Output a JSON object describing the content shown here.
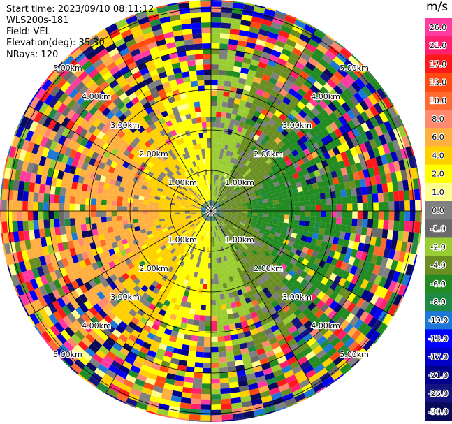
{
  "header": {
    "start_time": "Start time: 2023/09/10 08:11:12",
    "site": "WLS200s-181",
    "field": "Field: VEL",
    "elevation": "Elevation(deg): 35.30",
    "nrays": "NRays: 120"
  },
  "chart_data": {
    "type": "heatmap",
    "projection": "polar-ppi",
    "field": "VEL",
    "units": "m/s",
    "nrays": 120,
    "range_rings": [
      {
        "label": "1.00km",
        "value": 1
      },
      {
        "label": "2.00km",
        "value": 2
      },
      {
        "label": "3.00km",
        "value": 3
      },
      {
        "label": "4.00km",
        "value": 4
      },
      {
        "label": "5.00km",
        "value": 5
      }
    ],
    "colorbar": {
      "title": "m/s",
      "ticks": [
        "26.0",
        "21.0",
        "17.0",
        "13.0",
        "10.0",
        "8.0",
        "6.0",
        "4.0",
        "2.0",
        "1.0",
        "0.0",
        "-1.0",
        "-2.0",
        "-4.0",
        "-6.0",
        "-8.0",
        "-10.0",
        "-13.0",
        "-17.0",
        "-21.0",
        "-26.0",
        "-30.0"
      ],
      "colors": [
        "#ff3aa0",
        "#ff2070",
        "#ff1a1a",
        "#ff4a10",
        "#ff6a30",
        "#ff8a70",
        "#ffb040",
        "#ffd000",
        "#ffff00",
        "#ffff90",
        "#808080",
        "#6a6a6a",
        "#9acd32",
        "#6b8e23",
        "#228b22",
        "#1e8a44",
        "#1e78d8",
        "#0000ff",
        "#0000c8",
        "#00008b",
        "#141480",
        "#0a0a5a"
      ]
    }
  }
}
